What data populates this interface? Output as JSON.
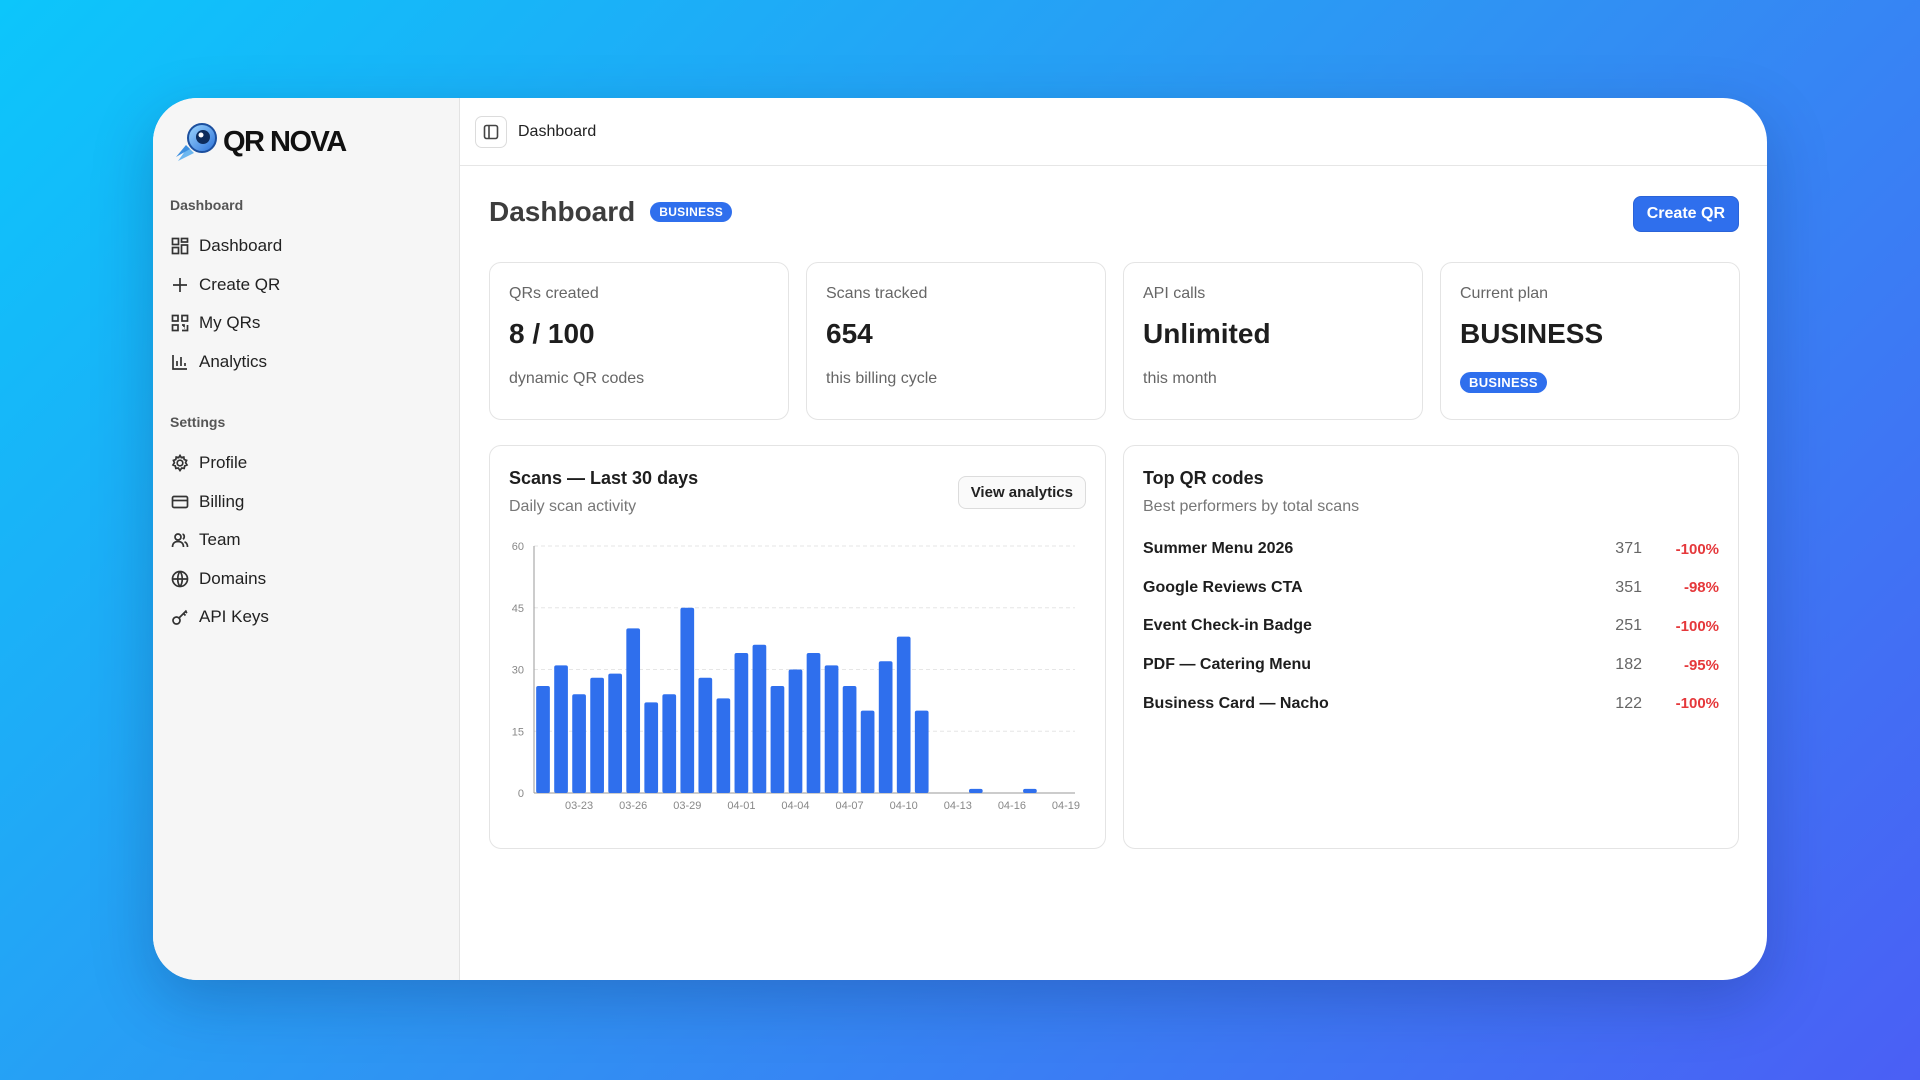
{
  "brand": {
    "name": "QR NOVA",
    "accent": "#2f6fed"
  },
  "sidebar": {
    "sections": [
      {
        "title": "Dashboard"
      },
      {
        "title": "Settings"
      }
    ],
    "items": [
      {
        "label": "Dashboard",
        "icon": "dashboard-icon"
      },
      {
        "label": "Create QR",
        "icon": "plus-icon"
      },
      {
        "label": "My QRs",
        "icon": "qr-icon"
      },
      {
        "label": "Analytics",
        "icon": "bar-chart-icon"
      },
      {
        "label": "Profile",
        "icon": "gear-icon"
      },
      {
        "label": "Billing",
        "icon": "credit-card-icon"
      },
      {
        "label": "Team",
        "icon": "users-icon"
      },
      {
        "label": "Domains",
        "icon": "globe-icon"
      },
      {
        "label": "API Keys",
        "icon": "key-icon"
      }
    ]
  },
  "topbar": {
    "breadcrumb": "Dashboard"
  },
  "header": {
    "title": "Dashboard",
    "badge": "BUSINESS",
    "create_label": "Create QR"
  },
  "stats": [
    {
      "label": "QRs created",
      "value": "8 / 100",
      "sub": "dynamic QR codes"
    },
    {
      "label": "Scans tracked",
      "value": "654",
      "sub": "this billing cycle"
    },
    {
      "label": "API calls",
      "value": "Unlimited",
      "sub": "this month"
    },
    {
      "label": "Current plan",
      "value": "BUSINESS",
      "badge": "BUSINESS"
    }
  ],
  "scans_card": {
    "title": "Scans — Last 30 days",
    "subtitle": "Daily scan activity",
    "button": "View analytics"
  },
  "chart_data": {
    "type": "bar",
    "title": "",
    "x_tick_labels": [
      "03-23",
      "03-26",
      "03-29",
      "04-01",
      "04-04",
      "04-07",
      "04-10",
      "04-13",
      "04-16",
      "04-19"
    ],
    "y_ticks": [
      0,
      15,
      30,
      45,
      60
    ],
    "ylim": [
      0,
      60
    ],
    "categories": [
      "03-21",
      "03-22",
      "03-23",
      "03-24",
      "03-25",
      "03-26",
      "03-27",
      "03-28",
      "03-29",
      "03-30",
      "03-31",
      "04-01",
      "04-02",
      "04-03",
      "04-04",
      "04-05",
      "04-06",
      "04-07",
      "04-08",
      "04-09",
      "04-10",
      "04-11",
      "04-12",
      "04-13",
      "04-14",
      "04-15",
      "04-16",
      "04-17",
      "04-18",
      "04-19"
    ],
    "values": [
      26,
      31,
      24,
      28,
      29,
      40,
      22,
      24,
      45,
      28,
      23,
      34,
      36,
      26,
      30,
      34,
      31,
      26,
      20,
      32,
      38,
      20,
      0,
      0,
      1,
      0,
      0,
      1,
      0,
      0
    ],
    "color": "#2f6fed",
    "grid": true
  },
  "top_card": {
    "title": "Top QR codes",
    "subtitle": "Best performers by total scans",
    "rows": [
      {
        "name": "Summer Menu 2026",
        "count": "371",
        "change": "-100%"
      },
      {
        "name": "Google Reviews CTA",
        "count": "351",
        "change": "-98%"
      },
      {
        "name": "Event Check-in Badge",
        "count": "251",
        "change": "-100%"
      },
      {
        "name": "PDF — Catering Menu",
        "count": "182",
        "change": "-95%"
      },
      {
        "name": "Business Card — Nacho",
        "count": "122",
        "change": "-100%"
      }
    ]
  }
}
